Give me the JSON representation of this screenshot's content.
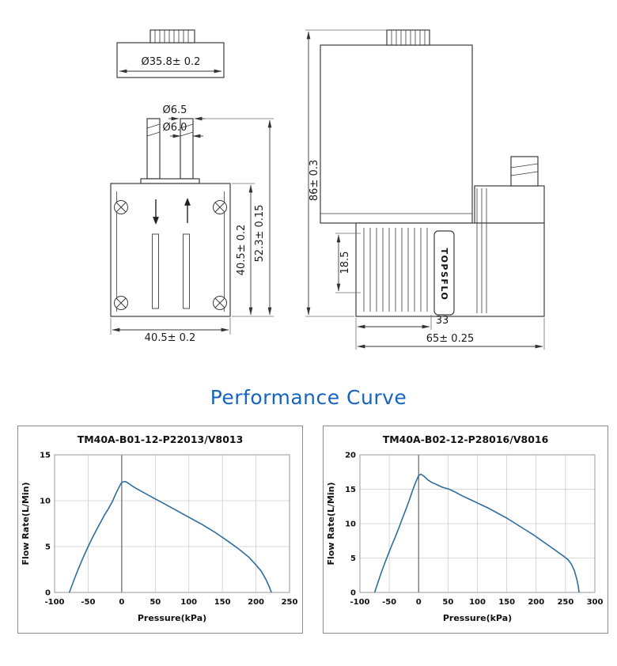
{
  "heading": {
    "text": "Performance Curve",
    "color": "#1565c0"
  },
  "drawings": {
    "front_view": {
      "dim_motor_diameter": "Ø35.8± 0.2",
      "dim_port_outer_diameter": "Ø6.5",
      "dim_port_inner_diameter": "Ø6.0",
      "dim_head_height": "40.5± 0.2",
      "dim_overall_height": "52.3± 0.15",
      "dim_head_width": "40.5± 0.2"
    },
    "side_view": {
      "dim_overall_height": "86± 0.3",
      "dim_valve_section_height": "18.5",
      "dim_fin_section_width": "33",
      "dim_overall_length": "65± 0.25",
      "brand_label": "TOPSFLO"
    }
  },
  "charts": [
    {
      "title": "TM40A-B01-12-P22013/V8013",
      "xlabel": "Pressure(kPa)",
      "ylabel": "Flow Rate(L/Min)",
      "type": "line",
      "line_color": "#2e6e9e",
      "xmin": -100,
      "xmax": 250,
      "ymin": 0,
      "ymax": 15,
      "xticks": [
        -100,
        -50,
        0,
        50,
        100,
        150,
        200,
        250
      ],
      "yticks": [
        0,
        5,
        10,
        15
      ],
      "points": [
        [
          -78,
          0
        ],
        [
          -72,
          1.2
        ],
        [
          -65,
          2.5
        ],
        [
          -58,
          3.7
        ],
        [
          -50,
          5
        ],
        [
          -42,
          6.2
        ],
        [
          -34,
          7.3
        ],
        [
          -26,
          8.4
        ],
        [
          -20,
          9.1
        ],
        [
          -14,
          9.9
        ],
        [
          -8,
          10.9
        ],
        [
          -3,
          11.6
        ],
        [
          0,
          12
        ],
        [
          5,
          12.1
        ],
        [
          10,
          11.9
        ],
        [
          20,
          11.4
        ],
        [
          30,
          11
        ],
        [
          45,
          10.4
        ],
        [
          60,
          9.8
        ],
        [
          80,
          9
        ],
        [
          100,
          8.2
        ],
        [
          120,
          7.4
        ],
        [
          140,
          6.5
        ],
        [
          160,
          5.5
        ],
        [
          175,
          4.7
        ],
        [
          190,
          3.8
        ],
        [
          200,
          3
        ],
        [
          208,
          2.3
        ],
        [
          215,
          1.4
        ],
        [
          220,
          0.6
        ],
        [
          223,
          0
        ]
      ]
    },
    {
      "title": "TM40A-B02-12-P28016/V8016",
      "xlabel": "Pressure(kPa)",
      "ylabel": "Flow Rate(L/Min)",
      "type": "line",
      "line_color": "#2e6e9e",
      "xmin": -100,
      "xmax": 300,
      "ymin": 0,
      "ymax": 20,
      "xticks": [
        -100,
        -50,
        0,
        50,
        100,
        150,
        200,
        250,
        300
      ],
      "yticks": [
        0,
        5,
        10,
        15,
        20
      ],
      "points": [
        [
          -75,
          0
        ],
        [
          -70,
          1.3
        ],
        [
          -64,
          2.8
        ],
        [
          -58,
          4.2
        ],
        [
          -52,
          5.5
        ],
        [
          -46,
          6.8
        ],
        [
          -40,
          8
        ],
        [
          -34,
          9.3
        ],
        [
          -28,
          10.7
        ],
        [
          -22,
          12
        ],
        [
          -16,
          13.4
        ],
        [
          -10,
          14.9
        ],
        [
          -5,
          16
        ],
        [
          0,
          17
        ],
        [
          4,
          17.2
        ],
        [
          9,
          16.9
        ],
        [
          15,
          16.4
        ],
        [
          22,
          16
        ],
        [
          30,
          15.7
        ],
        [
          40,
          15.3
        ],
        [
          52,
          15
        ],
        [
          62,
          14.6
        ],
        [
          75,
          14
        ],
        [
          90,
          13.4
        ],
        [
          105,
          12.8
        ],
        [
          120,
          12.2
        ],
        [
          135,
          11.5
        ],
        [
          150,
          10.8
        ],
        [
          165,
          10
        ],
        [
          180,
          9.2
        ],
        [
          195,
          8.4
        ],
        [
          210,
          7.5
        ],
        [
          225,
          6.6
        ],
        [
          238,
          5.8
        ],
        [
          248,
          5.2
        ],
        [
          255,
          4.7
        ],
        [
          260,
          4.1
        ],
        [
          265,
          3.2
        ],
        [
          269,
          2
        ],
        [
          272,
          0.8
        ],
        [
          273,
          0
        ]
      ]
    }
  ]
}
